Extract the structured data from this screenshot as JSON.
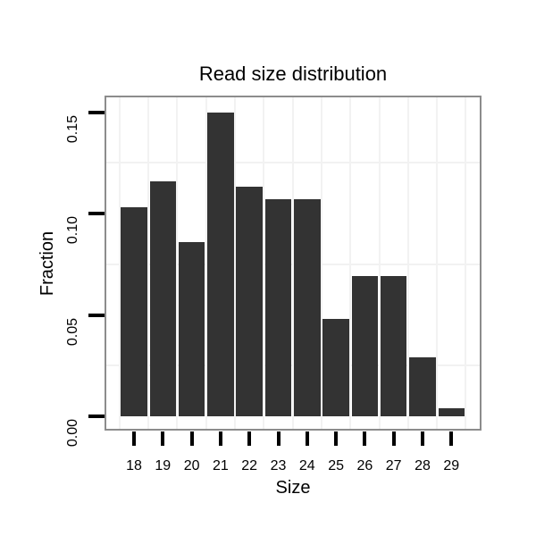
{
  "chart_data": {
    "type": "bar",
    "title": "Read size distribution",
    "xlabel": "Size",
    "ylabel": "Fraction",
    "categories": [
      "18",
      "19",
      "20",
      "21",
      "22",
      "23",
      "24",
      "25",
      "26",
      "27",
      "28",
      "29"
    ],
    "values": [
      0.103,
      0.116,
      0.086,
      0.15,
      0.113,
      0.107,
      0.107,
      0.048,
      0.069,
      0.069,
      0.029,
      0.004
    ],
    "y_ticks": {
      "values": [
        0,
        0.05,
        0.1,
        0.15
      ],
      "labels": [
        "0.00",
        "0.05",
        "0.10",
        "0.15"
      ]
    },
    "ylim": [
      -0.007,
      0.158
    ],
    "grid": {
      "y_minor": [
        0.025,
        0.075,
        0.125
      ],
      "x_minor_at_half_steps": true,
      "major_gridlines": false
    },
    "legend_position": "none",
    "colors": {
      "bar": "#333333",
      "panel_border": "#8c8c8c",
      "grid": "#f2f2f2",
      "tick": "#000000",
      "text": "#000000",
      "background": "#ffffff"
    }
  }
}
